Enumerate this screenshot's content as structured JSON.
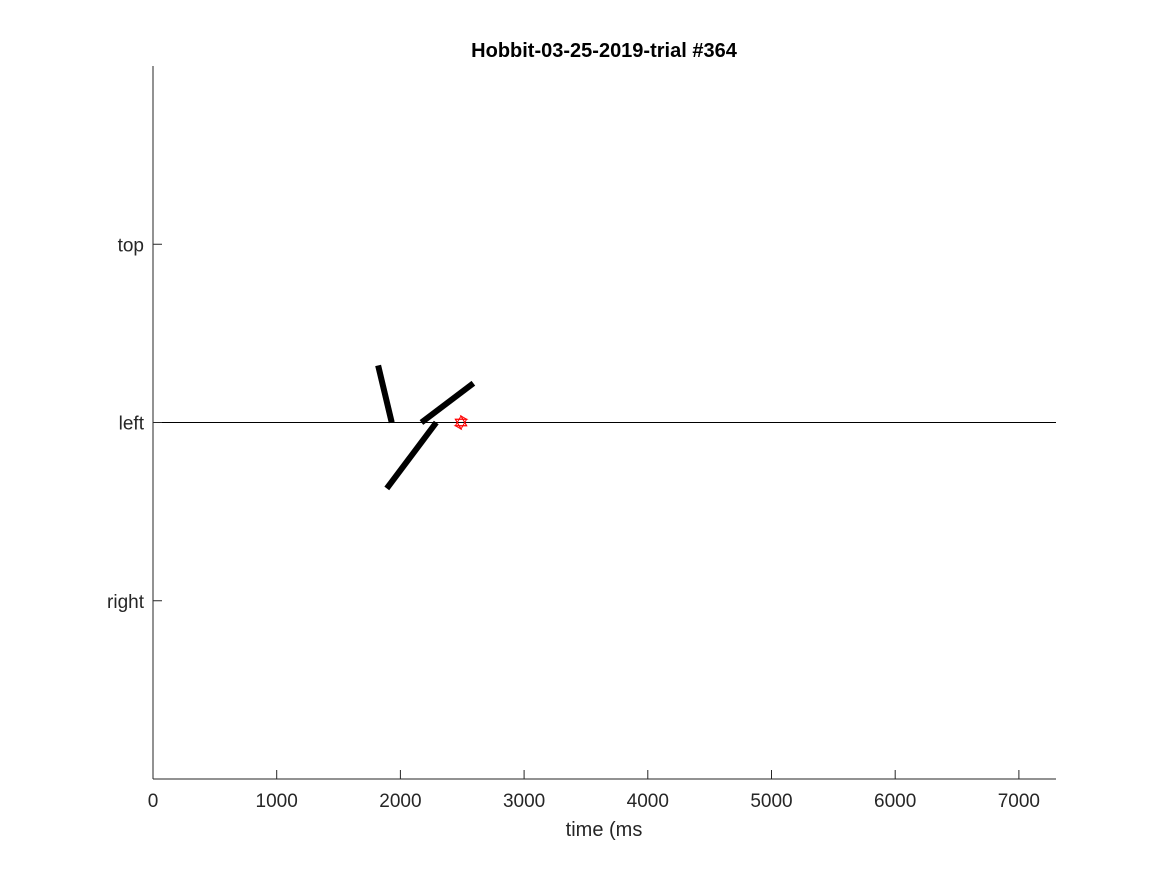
{
  "chart_data": {
    "type": "line",
    "title": "Hobbit-03-25-2019-trial #364",
    "xlabel": "time (ms",
    "ylabel": "",
    "xlim": [
      0,
      7300
    ],
    "ylim": [
      -2,
      2
    ],
    "x_ticks": [
      0,
      1000,
      2000,
      3000,
      4000,
      5000,
      6000,
      7000
    ],
    "x_tick_labels": [
      "0",
      "1000",
      "2000",
      "3000",
      "4000",
      "5000",
      "6000",
      "7000"
    ],
    "y_ticks": [
      1,
      0,
      -1
    ],
    "y_tick_labels": [
      "top",
      "left",
      "right"
    ],
    "grid": false,
    "legend": "none",
    "reference_line": {
      "y": 0,
      "x_range": [
        0,
        7300
      ],
      "color": "#000000"
    },
    "segments": [
      {
        "x": [
          1820,
          1930
        ],
        "y": [
          0.32,
          0.0
        ],
        "color": "#000000"
      },
      {
        "x": [
          2170,
          2590
        ],
        "y": [
          0.0,
          0.22
        ],
        "color": "#000000"
      },
      {
        "x": [
          1890,
          2290
        ],
        "y": [
          -0.37,
          0.0
        ],
        "color": "#000000"
      }
    ],
    "markers": [
      {
        "x": 2490,
        "y": 0,
        "shape": "hexagram",
        "color": "#ff0000"
      }
    ]
  }
}
